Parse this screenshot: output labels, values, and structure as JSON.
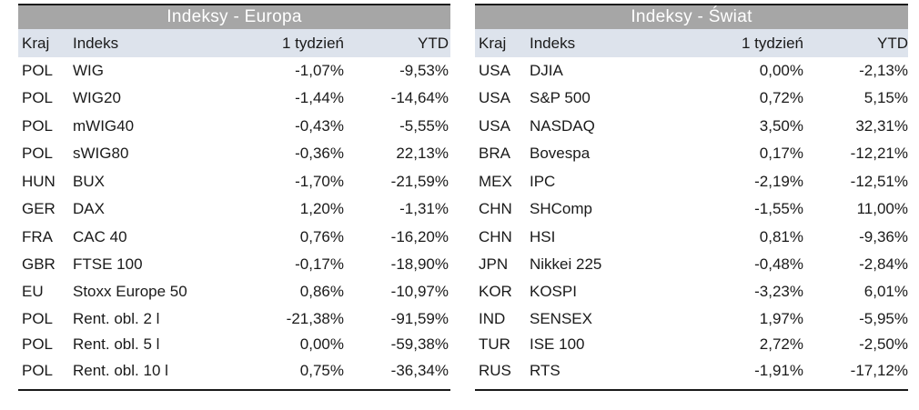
{
  "left": {
    "title": "Indeksy - Europa",
    "headers": {
      "kraj": "Kraj",
      "indeks": "Indeks",
      "week": "1 tydzień",
      "ytd": "YTD"
    },
    "rows": [
      {
        "kraj": "POL",
        "indeks": "WIG",
        "week": "-1,07%",
        "ytd": "-9,53%"
      },
      {
        "kraj": "POL",
        "indeks": "WIG20",
        "week": "-1,44%",
        "ytd": "-14,64%"
      },
      {
        "kraj": "POL",
        "indeks": "mWIG40",
        "week": "-0,43%",
        "ytd": "-5,55%"
      },
      {
        "kraj": "POL",
        "indeks": "sWIG80",
        "week": "-0,36%",
        "ytd": "22,13%"
      },
      {
        "kraj": "HUN",
        "indeks": "BUX",
        "week": "-1,70%",
        "ytd": "-21,59%"
      },
      {
        "kraj": "GER",
        "indeks": "DAX",
        "week": "1,20%",
        "ytd": "-1,31%"
      },
      {
        "kraj": "FRA",
        "indeks": "CAC 40",
        "week": "0,76%",
        "ytd": "-16,20%"
      },
      {
        "kraj": "GBR",
        "indeks": "FTSE 100",
        "week": "-0,17%",
        "ytd": "-18,90%"
      },
      {
        "kraj": "EU",
        "indeks": "Stoxx Europe 50",
        "week": "0,86%",
        "ytd": "-10,97%"
      },
      {
        "kraj": "POL",
        "indeks": "Rent. obl. 2 l",
        "week": "-21,38%",
        "ytd": "-91,59%"
      },
      {
        "kraj": "POL",
        "indeks": "Rent. obl. 5 l",
        "week": "0,00%",
        "ytd": "-59,38%"
      },
      {
        "kraj": "POL",
        "indeks": "Rent. obl. 10 l",
        "week": "0,75%",
        "ytd": "-36,34%"
      }
    ]
  },
  "right": {
    "title": "Indeksy - Świat",
    "headers": {
      "kraj": "Kraj",
      "indeks": "Indeks",
      "week": "1 tydzień",
      "ytd": "YTD"
    },
    "rows": [
      {
        "kraj": "USA",
        "indeks": "DJIA",
        "week": "0,00%",
        "ytd": "-2,13%"
      },
      {
        "kraj": "USA",
        "indeks": "S&P 500",
        "week": "0,72%",
        "ytd": "5,15%"
      },
      {
        "kraj": "USA",
        "indeks": "NASDAQ",
        "week": "3,50%",
        "ytd": "32,31%"
      },
      {
        "kraj": "BRA",
        "indeks": "Bovespa",
        "week": "0,17%",
        "ytd": "-12,21%"
      },
      {
        "kraj": "MEX",
        "indeks": "IPC",
        "week": "-2,19%",
        "ytd": "-12,51%"
      },
      {
        "kraj": "CHN",
        "indeks": "SHComp",
        "week": "-1,55%",
        "ytd": "11,00%"
      },
      {
        "kraj": "CHN",
        "indeks": "HSI",
        "week": "0,81%",
        "ytd": "-9,36%"
      },
      {
        "kraj": "JPN",
        "indeks": "Nikkei 225",
        "week": "-0,48%",
        "ytd": "-2,84%"
      },
      {
        "kraj": "KOR",
        "indeks": "KOSPI",
        "week": "-3,23%",
        "ytd": "6,01%"
      },
      {
        "kraj": "IND",
        "indeks": "SENSEX",
        "week": "1,97%",
        "ytd": "-5,95%"
      },
      {
        "kraj": "TUR",
        "indeks": "ISE 100",
        "week": "2,72%",
        "ytd": "-2,50%"
      },
      {
        "kraj": "RUS",
        "indeks": "RTS",
        "week": "-1,91%",
        "ytd": "-17,12%"
      }
    ]
  }
}
